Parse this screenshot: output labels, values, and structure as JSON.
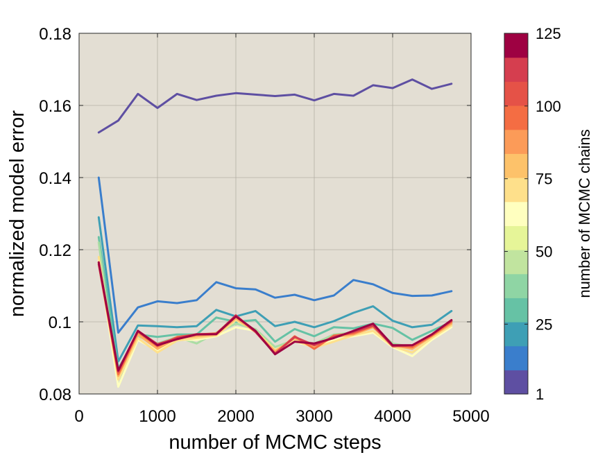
{
  "chart_data": {
    "type": "line",
    "xlabel": "number of MCMC steps",
    "ylabel": "normalized model error",
    "xlim": [
      0,
      5000
    ],
    "ylim": [
      0.08,
      0.18
    ],
    "xticks": [
      0,
      1000,
      2000,
      3000,
      4000,
      5000
    ],
    "xtick_labels": [
      "0",
      "1000",
      "2000",
      "3000",
      "4000",
      "5000"
    ],
    "yticks": [
      0.08,
      0.1,
      0.12,
      0.14,
      0.16,
      0.18
    ],
    "ytick_labels": [
      "0.08",
      "0.1",
      "0.12",
      "0.14",
      "0.16",
      "0.18"
    ],
    "grid": true,
    "background_color": "#e3ded3",
    "x": [
      250,
      500,
      750,
      1000,
      1250,
      1500,
      1750,
      2000,
      2250,
      2500,
      2750,
      3000,
      3250,
      3500,
      3750,
      4000,
      4250,
      4500,
      4750
    ],
    "series": [
      {
        "color": "#5e4fa2",
        "values": [
          0.1525,
          0.1558,
          0.1632,
          0.1593,
          0.1632,
          0.1615,
          0.1627,
          0.1634,
          0.163,
          0.1626,
          0.163,
          0.1614,
          0.1632,
          0.1627,
          0.1656,
          0.1648,
          0.1672,
          0.1646,
          0.166
        ]
      },
      {
        "color": "#3a7ecc",
        "values": [
          0.14,
          0.097,
          0.104,
          0.1057,
          0.1052,
          0.106,
          0.111,
          0.1093,
          0.109,
          0.1067,
          0.1075,
          0.106,
          0.1073,
          0.1116,
          0.1104,
          0.108,
          0.1072,
          0.1073,
          0.1085
        ]
      },
      {
        "color": "#3e9fb5",
        "values": [
          0.129,
          0.089,
          0.099,
          0.0988,
          0.0985,
          0.0988,
          0.1033,
          0.1015,
          0.103,
          0.0988,
          0.1,
          0.0985,
          0.1002,
          0.1025,
          0.1043,
          0.1003,
          0.0985,
          0.0992,
          0.103
        ]
      },
      {
        "color": "#66c2a5",
        "values": [
          0.1235,
          0.087,
          0.0965,
          0.0958,
          0.0965,
          0.0965,
          0.1012,
          0.1,
          0.1005,
          0.0945,
          0.098,
          0.096,
          0.0985,
          0.0982,
          0.0995,
          0.0983,
          0.095,
          0.0975,
          0.1
        ]
      },
      {
        "color": "#abdda4",
        "values": [
          0.122,
          0.082,
          0.096,
          0.094,
          0.0958,
          0.094,
          0.097,
          0.0995,
          0.098,
          0.093,
          0.095,
          0.094,
          0.0965,
          0.097,
          0.0985,
          0.094,
          0.093,
          0.096,
          0.0995
        ]
      },
      {
        "color": "#ffffbf",
        "values": [
          0.117,
          0.082,
          0.095,
          0.092,
          0.095,
          0.095,
          0.096,
          0.0985,
          0.0975,
          0.0915,
          0.0945,
          0.093,
          0.095,
          0.096,
          0.097,
          0.093,
          0.0905,
          0.095,
          0.0985
        ]
      },
      {
        "color": "#fee08b",
        "values": [
          0.118,
          0.084,
          0.0955,
          0.0915,
          0.0948,
          0.0955,
          0.0962,
          0.1005,
          0.0975,
          0.0922,
          0.0948,
          0.0928,
          0.0945,
          0.0963,
          0.0975,
          0.0932,
          0.0915,
          0.0955,
          0.099
        ]
      },
      {
        "color": "#fdae61",
        "values": [
          0.116,
          0.085,
          0.0965,
          0.0925,
          0.0955,
          0.096,
          0.0965,
          0.101,
          0.0972,
          0.0918,
          0.0955,
          0.093,
          0.0958,
          0.0965,
          0.0985,
          0.0935,
          0.0925,
          0.096,
          0.0995
        ]
      },
      {
        "color": "#f46d43",
        "values": [
          0.1165,
          0.0855,
          0.0972,
          0.0932,
          0.0958,
          0.0965,
          0.0968,
          0.1015,
          0.0975,
          0.0912,
          0.096,
          0.0925,
          0.0962,
          0.0968,
          0.0988,
          0.0935,
          0.093,
          0.0962,
          0.1
        ]
      },
      {
        "color": "#d53e4f",
        "values": [
          0.116,
          0.0862,
          0.0975,
          0.0938,
          0.0955,
          0.0966,
          0.0966,
          0.1018,
          0.0972,
          0.0912,
          0.0958,
          0.0935,
          0.0958,
          0.0972,
          0.099,
          0.0932,
          0.0935,
          0.0965,
          0.1003
        ]
      },
      {
        "color": "#9e0142",
        "values": [
          0.1165,
          0.0865,
          0.0975,
          0.0935,
          0.0952,
          0.0965,
          0.0966,
          0.1015,
          0.0975,
          0.091,
          0.0945,
          0.094,
          0.0955,
          0.0975,
          0.0995,
          0.0935,
          0.0935,
          0.0965,
          0.1005
        ]
      }
    ],
    "colorbar": {
      "label": "number of MCMC chains",
      "range": [
        1,
        125
      ],
      "ticks": [
        1,
        25,
        50,
        75,
        100,
        125
      ],
      "tick_labels": [
        "1",
        "25",
        "50",
        "75",
        "100",
        "125"
      ],
      "colors": [
        "#5e4fa2",
        "#3a7ecc",
        "#3e9fb5",
        "#66c2a5",
        "#8fd5a4",
        "#c1e49f",
        "#e6f598",
        "#ffffbf",
        "#fee08b",
        "#fdc26a",
        "#fc9b58",
        "#f46d43",
        "#e55247",
        "#d53e4f",
        "#9e0142"
      ]
    }
  }
}
